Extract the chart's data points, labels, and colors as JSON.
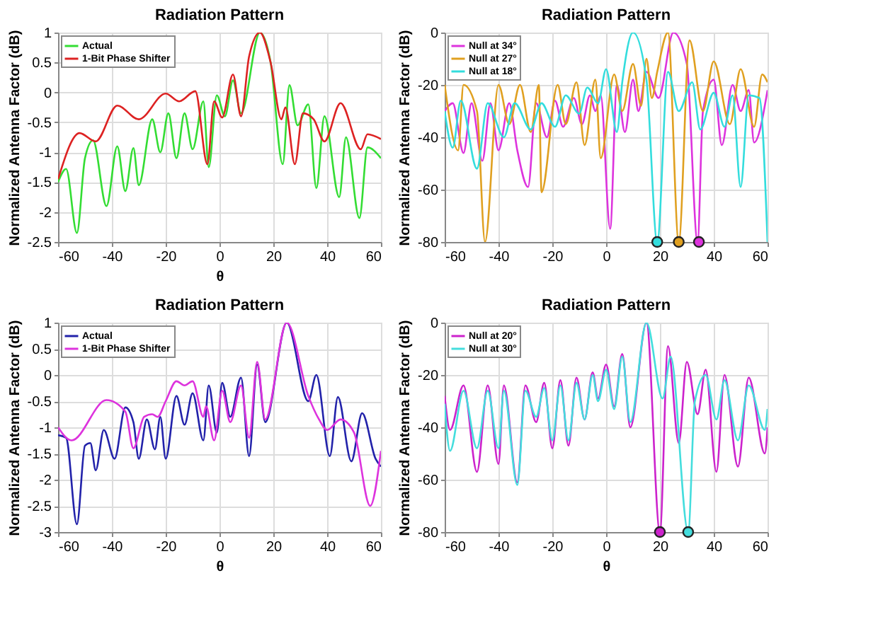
{
  "chart_data": [
    {
      "type": "line",
      "title": "Radiation Pattern",
      "xlabel": "θ",
      "ylabel": "Normalized Antenna Factor (dB)",
      "xlim": [
        -60,
        60
      ],
      "xticks": [
        -60,
        -40,
        -20,
        0,
        20,
        40,
        60
      ],
      "ylim": [
        -2.5,
        1
      ],
      "yticks": [
        -2.5,
        -2,
        -1.5,
        -1,
        -0.5,
        0,
        0.5,
        1
      ],
      "grid": true,
      "legend": "top left",
      "line_style": "solid",
      "series": [
        {
          "name": "Actual",
          "color": "#33dd33",
          "x": [
            -60,
            -57,
            -53,
            -50,
            -47,
            -42,
            -38,
            -35,
            -32,
            -30,
            -25,
            -22,
            -19,
            -16,
            -13,
            -10,
            -6,
            -4,
            -1,
            2,
            5,
            8,
            15,
            19,
            23.5,
            26,
            29,
            33,
            36,
            39,
            44.5,
            47,
            52,
            55,
            60
          ],
          "values": [
            -1.5,
            -1.28,
            -2.35,
            -1.1,
            -0.8,
            -1.9,
            -0.9,
            -1.65,
            -0.93,
            -1.55,
            -0.45,
            -1.0,
            -0.35,
            -1.1,
            -0.35,
            -0.95,
            -0.15,
            -1.25,
            -0.05,
            -0.4,
            0.2,
            -0.35,
            1.0,
            0.5,
            -1.2,
            0.12,
            -0.55,
            -0.2,
            -1.6,
            -0.4,
            -1.75,
            -0.75,
            -2.1,
            -0.92,
            -1.1
          ]
        },
        {
          "name": "1-Bit Phase Shifter",
          "color": "#dd2222",
          "x": [
            -60,
            -52,
            -46,
            -38,
            -30,
            -20,
            -15,
            -9,
            -4.5,
            -2,
            1,
            5,
            8,
            11,
            15,
            19,
            23,
            24.5,
            28,
            31,
            35,
            39,
            45,
            52.5,
            55,
            60
          ],
          "values": [
            -1.45,
            -0.68,
            -0.82,
            -0.22,
            -0.45,
            -0.02,
            -0.15,
            0.02,
            -1.2,
            -0.15,
            -0.42,
            0.3,
            -0.4,
            0.6,
            1.0,
            0.5,
            -0.45,
            -0.25,
            -1.2,
            -0.35,
            -0.45,
            -0.82,
            -0.18,
            -0.95,
            -0.7,
            -0.78
          ]
        }
      ]
    },
    {
      "type": "line",
      "title": "Radiation Pattern",
      "ylabel": "Normalized Antenna Factor (dB)",
      "xlim": [
        -60,
        60
      ],
      "xticks": [
        -60,
        -40,
        -20,
        0,
        20,
        40,
        60
      ],
      "ylim": [
        -80,
        0
      ],
      "yticks": [
        -80,
        -60,
        -40,
        -20,
        0
      ],
      "grid": true,
      "legend": "top left",
      "line_style": "solid",
      "series": [
        {
          "name": "Null at 34°",
          "color": "#dd33dd",
          "x": [
            -60,
            -57,
            -53,
            -50,
            -46,
            -43,
            -40,
            -36,
            -33,
            -29,
            -26,
            -22,
            -19,
            -16,
            -12,
            -9,
            -6,
            -4,
            -2,
            1.5,
            4,
            7,
            10,
            12,
            15,
            19.5,
            25,
            30,
            34,
            36,
            40,
            43,
            47,
            50,
            53,
            55,
            60
          ],
          "values": [
            -30,
            -27,
            -46,
            -27,
            -49,
            -27,
            -45,
            -27,
            -45,
            -59,
            -27,
            -40,
            -26,
            -36,
            -25,
            -35,
            -24,
            -30,
            -24,
            -75,
            -20,
            -38,
            -18,
            -30,
            -15,
            -25,
            0,
            -12,
            -80,
            -30,
            -18,
            -43,
            -20,
            -30,
            -22,
            -42,
            -22
          ]
        },
        {
          "name": "Null at 27°",
          "color": "#e0a020",
          "x": [
            -60,
            -55,
            -53,
            -48,
            -45,
            -40,
            -36,
            -32,
            -28,
            -25,
            -24,
            -18,
            -15,
            -11,
            -8,
            -4,
            -2,
            3,
            6,
            10,
            13,
            15,
            17,
            19,
            23,
            27,
            31,
            36,
            40,
            46,
            50,
            55,
            58,
            60
          ],
          "values": [
            -20,
            -45,
            -20,
            -30,
            -80,
            -20,
            -35,
            -20,
            -38,
            -20,
            -61,
            -20,
            -35,
            -19,
            -43,
            -18,
            -48,
            -16,
            -30,
            -12,
            -28,
            -10,
            -25,
            -15,
            0,
            -80,
            -3,
            -30,
            -11,
            -35,
            -14,
            -36,
            -16,
            -19
          ]
        },
        {
          "name": "Null at 18°",
          "color": "#33dddd",
          "x": [
            -60,
            -57,
            -54,
            -48,
            -44,
            -38,
            -34,
            -28,
            -24,
            -19,
            -15,
            -10,
            -7,
            -3,
            0,
            4,
            6,
            10,
            15,
            19,
            23,
            27,
            32,
            35,
            40,
            44,
            47,
            50,
            53,
            57,
            60
          ],
          "values": [
            -30,
            -44,
            -26,
            -52,
            -27,
            -40,
            -27,
            -37,
            -27,
            -36,
            -24,
            -31,
            -21,
            -27,
            -14,
            -38,
            -19,
            0,
            -18,
            -80,
            -15,
            -30,
            -19,
            -37,
            -23,
            -36,
            -24,
            -59,
            -24,
            -25,
            -80
          ]
        },
        {
          "type": "scatter",
          "marker": "circle",
          "x": [
            19,
            27,
            34.5
          ],
          "values": [
            -80,
            -80,
            -80
          ],
          "colors": [
            "#33dddd",
            "#e0a020",
            "#dd33dd"
          ]
        }
      ]
    },
    {
      "type": "line",
      "title": "Radiation Pattern",
      "xlabel": "θ",
      "ylabel": "Normalized Antenna Factor (dB)",
      "xlim": [
        -60,
        60
      ],
      "xticks": [
        -60,
        -40,
        -20,
        0,
        20,
        40,
        60
      ],
      "ylim": [
        -3,
        1
      ],
      "yticks": [
        -3,
        -2.5,
        -2,
        -1.5,
        -1,
        -0.5,
        0,
        0.5,
        1
      ],
      "grid": true,
      "legend": "top left",
      "line_style": "solid",
      "series": [
        {
          "name": "Actual",
          "color": "#2222aa",
          "x": [
            -60,
            -57,
            -53,
            -50,
            -48,
            -46,
            -43,
            -39,
            -35,
            -32,
            -30,
            -27,
            -24,
            -22,
            -20,
            -16,
            -13,
            -10,
            -6,
            -4,
            -1,
            1,
            4,
            8,
            11,
            14,
            17,
            25,
            33,
            36,
            41,
            44,
            49,
            53,
            58,
            60
          ],
          "values": [
            -1.15,
            -1.2,
            -2.85,
            -1.35,
            -1.3,
            -1.82,
            -1.05,
            -1.6,
            -0.62,
            -0.9,
            -1.6,
            -0.85,
            -1.42,
            -0.8,
            -1.6,
            -0.4,
            -0.95,
            -0.35,
            -1.25,
            -0.2,
            -1.1,
            -0.15,
            -0.8,
            -0.05,
            -1.55,
            0.2,
            -0.9,
            1.0,
            -0.5,
            0,
            -1.55,
            -0.42,
            -1.65,
            -0.73,
            -1.6,
            -1.75
          ]
        },
        {
          "name": "1-Bit Phase Shifter",
          "color": "#dd33dd",
          "x": [
            -60,
            -55,
            -42,
            -35,
            -32,
            -28,
            -25,
            -23,
            -20,
            -16,
            -13,
            -10,
            -6,
            -5,
            -2,
            1,
            4,
            8,
            11,
            14,
            17,
            25,
            33,
            37,
            40,
            45,
            50,
            56,
            60
          ],
          "values": [
            -1.0,
            -1.25,
            -0.48,
            -0.7,
            -1.4,
            -0.8,
            -0.75,
            -0.8,
            -0.5,
            -0.12,
            -0.2,
            -0.12,
            -0.8,
            -0.6,
            -1.25,
            -0.3,
            -0.9,
            -0.2,
            -1.2,
            0.25,
            -0.85,
            1.0,
            -0.4,
            -0.85,
            -1.05,
            -0.85,
            -1.1,
            -2.5,
            -1.45
          ]
        }
      ]
    },
    {
      "type": "line",
      "title": "Radiation Pattern",
      "xlabel": "θ",
      "ylabel": "Normalized Antenna Factor (dB)",
      "xlim": [
        -60,
        60
      ],
      "xticks": [
        -60,
        -40,
        -20,
        0,
        20,
        40,
        60
      ],
      "ylim": [
        -80,
        0
      ],
      "yticks": [
        -80,
        -60,
        -40,
        -20,
        0
      ],
      "grid": true,
      "legend": "top left",
      "line_style": "solid",
      "series": [
        {
          "name": "Null at 20°",
          "color": "#cc22cc",
          "x": [
            -60,
            -58,
            -53,
            -48,
            -44,
            -40,
            -38,
            -33,
            -30,
            -26,
            -23,
            -20,
            -17,
            -14,
            -11,
            -8,
            -5,
            -3,
            0,
            3,
            6,
            9,
            15,
            20,
            23,
            27,
            30,
            34,
            37,
            41,
            44,
            49,
            53,
            59,
            60
          ],
          "values": [
            -28,
            -41,
            -24,
            -57,
            -24,
            -54,
            -24,
            -61,
            -24,
            -38,
            -23,
            -48,
            -22,
            -47,
            -21,
            -37,
            -19,
            -29,
            -16,
            -32,
            -12,
            -40,
            0,
            -80,
            -9,
            -46,
            -15,
            -35,
            -18,
            -57,
            -20,
            -55,
            -21,
            -50,
            -40
          ]
        },
        {
          "name": "Null at 30°",
          "color": "#44dddd",
          "x": [
            -60,
            -58,
            -53,
            -48,
            -44,
            -40,
            -38,
            -33,
            -30,
            -26,
            -23,
            -20,
            -17,
            -14,
            -11,
            -8,
            -5,
            -3,
            0,
            3,
            6,
            9,
            15,
            21,
            24,
            30.5,
            33,
            37,
            41,
            44,
            49,
            53,
            59,
            60
          ],
          "values": [
            -31,
            -49,
            -26,
            -48,
            -26,
            -48,
            -26,
            -62,
            -26,
            -36,
            -25,
            -45,
            -24,
            -45,
            -23,
            -37,
            -20,
            -30,
            -18,
            -33,
            -13,
            -38,
            0,
            -29,
            -13,
            -80,
            -30,
            -20,
            -37,
            -22,
            -45,
            -24,
            -41,
            -33
          ]
        },
        {
          "type": "scatter",
          "marker": "circle",
          "x": [
            20,
            30.5
          ],
          "values": [
            -80,
            -80
          ],
          "colors": [
            "#cc22cc",
            "#44dddd"
          ]
        }
      ]
    }
  ]
}
